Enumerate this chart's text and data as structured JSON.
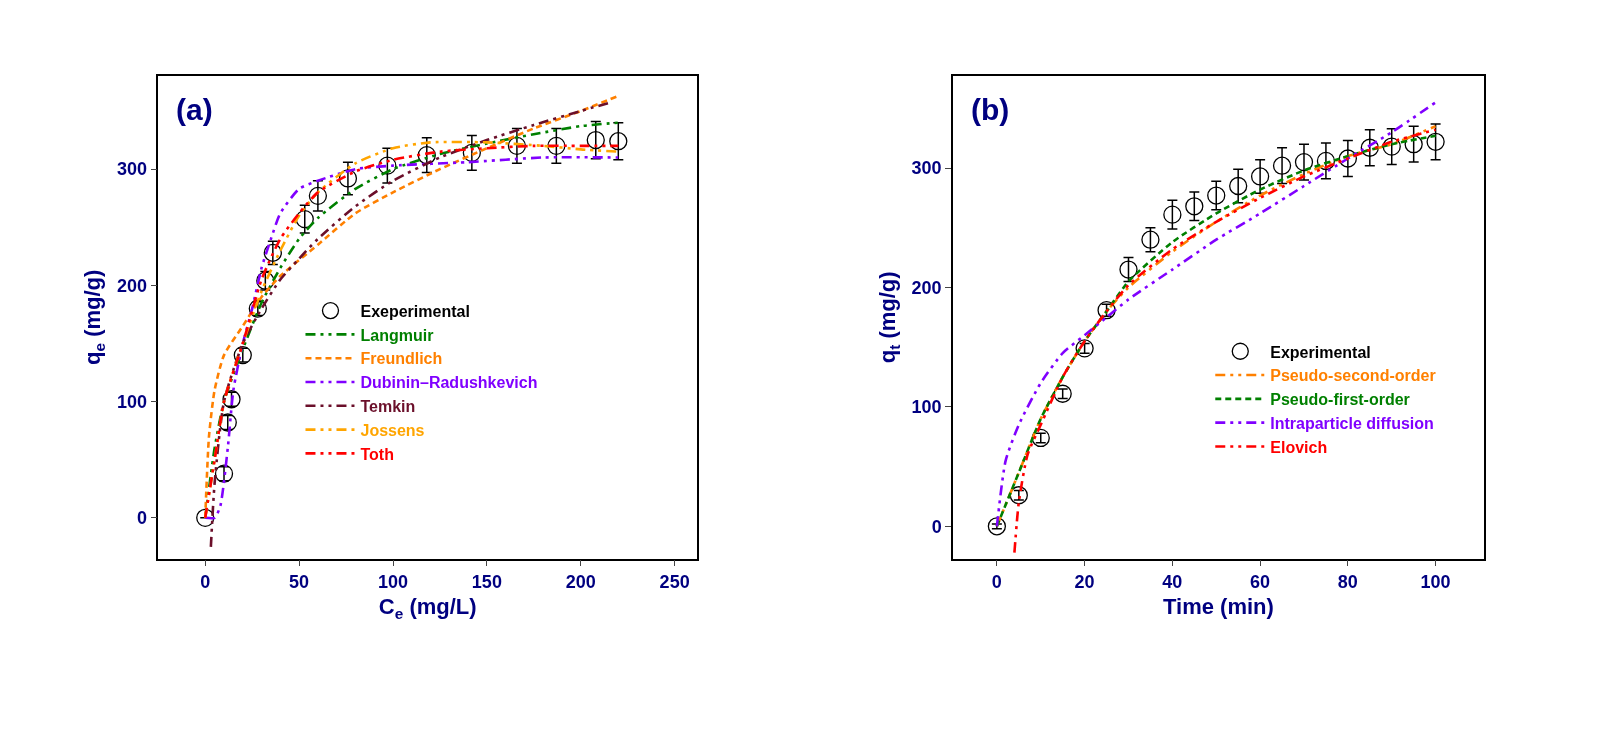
{
  "chart_data": [
    {
      "type": "line",
      "title": "(a)",
      "xlabel": "C$_{e}$ (mg/L)",
      "ylabel": "q$_{e}$ (mg/g)",
      "xlim": [
        -25,
        262
      ],
      "xticks": [
        0,
        50,
        100,
        150,
        200,
        250
      ],
      "ylim": [
        -35,
        380
      ],
      "yticks": [
        0,
        100,
        200,
        300
      ],
      "legend": "bottom right",
      "series": [
        {
          "name": "Exeperimental",
          "type": "scatter",
          "marker": "circle",
          "color": "#000000",
          "x": [
            0,
            10,
            12,
            14,
            20,
            28,
            32,
            36,
            53,
            60,
            76,
            97,
            118,
            142,
            166,
            187,
            208,
            220
          ],
          "values": [
            0,
            38,
            82,
            102,
            140,
            180,
            204,
            228,
            257,
            277,
            292,
            303,
            312,
            314,
            320,
            320,
            325,
            324
          ],
          "errors": [
            null,
            6,
            6,
            6,
            6,
            6,
            8,
            10,
            12,
            13,
            14,
            15,
            15,
            15,
            15,
            15,
            16,
            16
          ]
        },
        {
          "name": "Langmuir",
          "color": "#008000",
          "line_style": "dotted",
          "x": [
            0,
            5,
            10,
            20,
            30,
            40,
            50,
            60,
            80,
            100,
            125,
            150,
            175,
            200,
            220
          ],
          "values": [
            0,
            60,
            100,
            145,
            185,
            215,
            240,
            258,
            283,
            300,
            313,
            322,
            330,
            337,
            340
          ]
        },
        {
          "name": "Freundlich",
          "color": "#ff8000",
          "line_style": "dashed",
          "x": [
            0,
            2,
            5,
            10,
            20,
            30,
            40,
            60,
            80,
            100,
            125,
            150,
            175,
            200,
            220
          ],
          "values": [
            0,
            70,
            110,
            140,
            165,
            190,
            208,
            235,
            262,
            280,
            300,
            318,
            335,
            350,
            363
          ]
        },
        {
          "name": "Dubinin–Radushkevich",
          "color": "#8000ff",
          "line_style": "dotted",
          "x": [
            0,
            5,
            8,
            12,
            15,
            20,
            25,
            30,
            35,
            40,
            50,
            60,
            80,
            100,
            140,
            180,
            220
          ],
          "values": [
            0,
            0,
            10,
            60,
            110,
            150,
            180,
            215,
            240,
            262,
            283,
            290,
            300,
            303,
            306,
            310,
            310
          ]
        },
        {
          "name": "Temkin",
          "color": "#6b0f2a",
          "line_style": "dotted",
          "x": [
            3,
            5,
            10,
            20,
            30,
            40,
            50,
            60,
            80,
            100,
            125,
            150,
            175,
            200,
            215
          ],
          "values": [
            -25,
            30,
            100,
            150,
            180,
            205,
            223,
            240,
            268,
            290,
            310,
            325,
            338,
            350,
            357
          ]
        },
        {
          "name": "Jossens",
          "color": "#ffa500",
          "line_style": "dotted",
          "x": [
            0,
            5,
            10,
            20,
            30,
            40,
            50,
            60,
            80,
            100,
            120,
            150,
            180,
            200,
            220
          ],
          "values": [
            0,
            50,
            100,
            150,
            195,
            230,
            260,
            280,
            305,
            318,
            323,
            323,
            320,
            317,
            315
          ]
        },
        {
          "name": "Toth",
          "color": "#ff0000",
          "line_style": "dotted",
          "x": [
            0,
            5,
            10,
            20,
            30,
            40,
            50,
            60,
            80,
            100,
            125,
            150,
            175,
            200,
            220
          ],
          "values": [
            0,
            50,
            100,
            150,
            205,
            240,
            262,
            280,
            298,
            308,
            315,
            318,
            320,
            320,
            320
          ]
        }
      ]
    },
    {
      "type": "line",
      "title": "(b)",
      "xlabel": "Time (min)",
      "ylabel": "q$_{t}$ (mg/g)",
      "xlim": [
        -10,
        111
      ],
      "xticks": [
        0,
        20,
        40,
        60,
        80,
        100
      ],
      "ylim": [
        -27,
        377
      ],
      "yticks": [
        0,
        100,
        200,
        300
      ],
      "legend": "bottom right",
      "series": [
        {
          "name": "Experimental",
          "type": "scatter",
          "marker": "circle",
          "color": "#000000",
          "x": [
            0,
            5,
            10,
            15,
            20,
            25,
            30,
            35,
            40,
            45,
            50,
            55,
            60,
            65,
            70,
            75,
            80,
            85,
            90,
            95,
            100
          ],
          "values": [
            0,
            26,
            74,
            111,
            149,
            181,
            215,
            240,
            261,
            268,
            277,
            285,
            293,
            302,
            305,
            306,
            308,
            317,
            318,
            320,
            322
          ],
          "errors": [
            2,
            4,
            4,
            4,
            4,
            5,
            10,
            10,
            12,
            12,
            12,
            14,
            14,
            15,
            15,
            15,
            15,
            15,
            15,
            15,
            15
          ]
        },
        {
          "name": "Pseudo-second-order",
          "color": "#ff8000",
          "line_style": "dotted",
          "x": [
            0,
            5,
            10,
            15,
            20,
            25,
            30,
            40,
            50,
            60,
            70,
            80,
            90,
            100
          ],
          "values": [
            0,
            45,
            90,
            125,
            155,
            180,
            200,
            230,
            255,
            277,
            295,
            310,
            320,
            335
          ]
        },
        {
          "name": "Pseudo-first-order",
          "color": "#008000",
          "line_style": "dashed",
          "x": [
            0,
            5,
            10,
            15,
            20,
            25,
            30,
            40,
            50,
            60,
            70,
            80,
            90,
            100
          ],
          "values": [
            0,
            45,
            90,
            125,
            155,
            180,
            205,
            238,
            262,
            282,
            298,
            310,
            320,
            327
          ]
        },
        {
          "name": "Intraparticle diffusion",
          "color": "#8000ff",
          "line_style": "dotted",
          "x": [
            0,
            2,
            5,
            10,
            15,
            20,
            25,
            30,
            40,
            50,
            60,
            70,
            80,
            90,
            100
          ],
          "values": [
            0,
            55,
            85,
            120,
            145,
            160,
            175,
            190,
            215,
            240,
            262,
            285,
            308,
            330,
            355
          ]
        },
        {
          "name": "Elovich",
          "color": "#ff0000",
          "line_style": "dotted",
          "x": [
            4,
            5,
            7,
            10,
            15,
            20,
            25,
            30,
            40,
            50,
            60,
            70,
            80,
            90,
            100
          ],
          "values": [
            -22,
            20,
            60,
            85,
            125,
            155,
            180,
            202,
            232,
            255,
            275,
            293,
            308,
            322,
            332
          ]
        }
      ]
    }
  ]
}
